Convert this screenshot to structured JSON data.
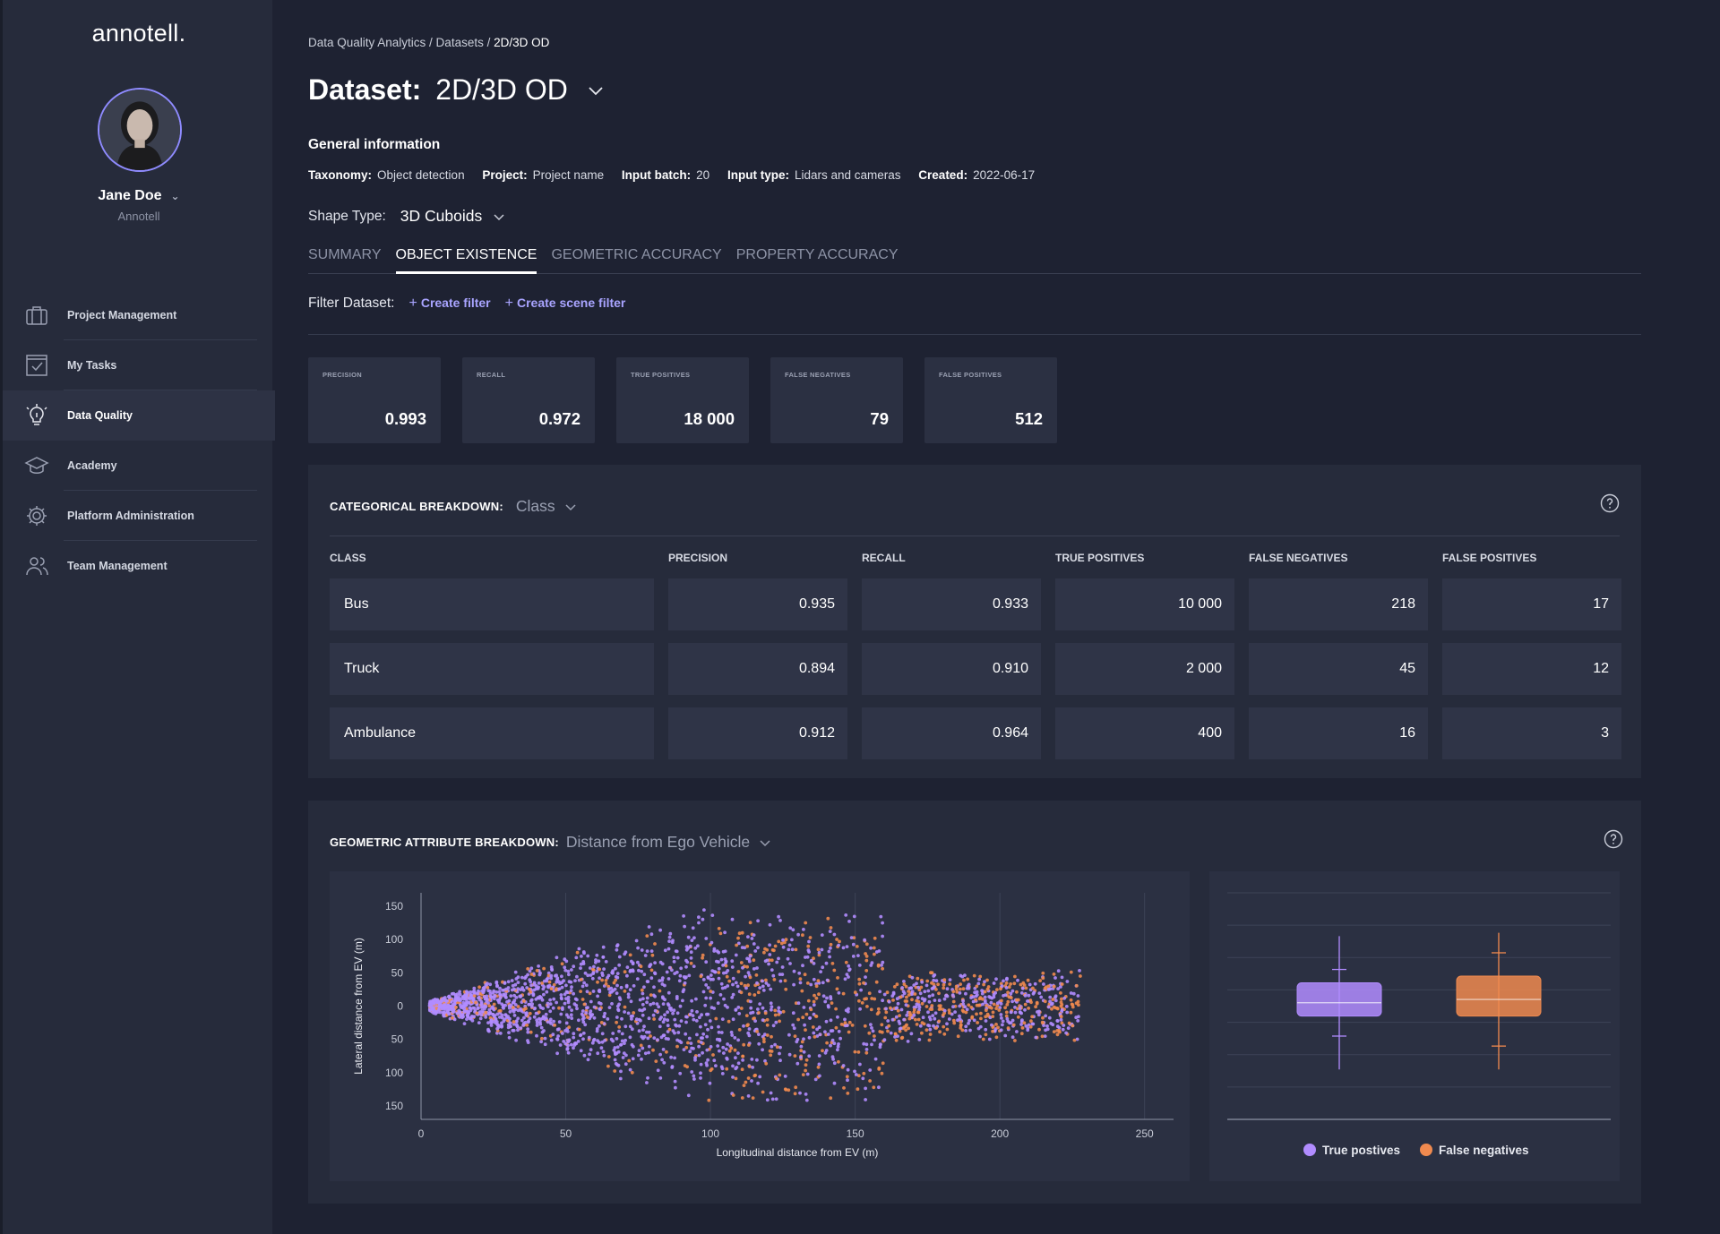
{
  "brand": "annotell.",
  "user": {
    "name": "Jane Doe",
    "org": "Annotell"
  },
  "nav": [
    {
      "label": "Project Management",
      "icon": "briefcase-icon"
    },
    {
      "label": "My Tasks",
      "icon": "checklist-icon"
    },
    {
      "label": "Data Quality",
      "icon": "lightbulb-icon",
      "active": true
    },
    {
      "label": "Academy",
      "icon": "graduation-cap-icon"
    },
    {
      "label": "Platform Administration",
      "icon": "gear-icon"
    },
    {
      "label": "Team Management",
      "icon": "users-icon"
    }
  ],
  "breadcrumb": {
    "path": "Data Quality Analytics / Datasets / ",
    "current": "2D/3D OD"
  },
  "title": {
    "prefix": "Dataset:",
    "name": "2D/3D OD"
  },
  "general": {
    "heading": "General information",
    "taxonomy_k": "Taxonomy:",
    "taxonomy_v": "Object detection",
    "project_k": "Project:",
    "project_v": "Project name",
    "batch_k": "Input batch:",
    "batch_v": "20",
    "type_k": "Input type:",
    "type_v": "Lidars and cameras",
    "created_k": "Created:",
    "created_v": "2022-06-17"
  },
  "shape": {
    "label": "Shape Type:",
    "value": "3D Cuboids"
  },
  "tabs": [
    "SUMMARY",
    "OBJECT EXISTENCE",
    "GEOMETRIC ACCURACY",
    "PROPERTY ACCURACY"
  ],
  "active_tab": 1,
  "filter": {
    "label": "Filter Dataset:",
    "create": "Create filter",
    "scene": "Create scene filter"
  },
  "kpis": [
    {
      "label": "PRECISION",
      "value": "0.993"
    },
    {
      "label": "RECALL",
      "value": "0.972"
    },
    {
      "label": "TRUE POSITIVES",
      "value": "18 000"
    },
    {
      "label": "FALSE NEGATIVES",
      "value": "79"
    },
    {
      "label": "FALSE POSITIVES",
      "value": "512"
    }
  ],
  "categorical": {
    "heading": "CATEGORICAL BREAKDOWN:",
    "selector": "Class",
    "columns": [
      "CLASS",
      "PRECISION",
      "RECALL",
      "TRUE POSITIVES",
      "FALSE NEGATIVES",
      "FALSE POSITIVES"
    ],
    "rows": [
      [
        "Bus",
        "0.935",
        "0.933",
        "10 000",
        "218",
        "17"
      ],
      [
        "Truck",
        "0.894",
        "0.910",
        "2 000",
        "45",
        "12"
      ],
      [
        "Ambulance",
        "0.912",
        "0.964",
        "400",
        "16",
        "3"
      ]
    ]
  },
  "geometric": {
    "heading": "GEOMETRIC ATTRIBUTE BREAKDOWN:",
    "selector": "Distance from Ego Vehicle"
  },
  "chart_data": [
    {
      "type": "scatter",
      "xlabel": "Longitudinal distance from EV (m)",
      "ylabel": "Lateral distance from EV (m)",
      "xlim": [
        0,
        260
      ],
      "ylim": [
        -170,
        170
      ],
      "x_ticks": [
        0,
        50,
        100,
        150,
        200,
        250
      ],
      "y_ticks": [
        150,
        100,
        50,
        0,
        -50,
        -100,
        -150
      ],
      "y_tick_labels": [
        "150",
        "100",
        "50",
        "0",
        "50",
        "100",
        "150"
      ],
      "grid": true,
      "series": [
        {
          "name": "True postives",
          "color": "#b18cff"
        },
        {
          "name": "False negatives",
          "color": "#f08a4f"
        }
      ]
    },
    {
      "type": "box",
      "grid": true,
      "legend": "bottom",
      "series": [
        {
          "name": "True postives",
          "color": "#b18cff",
          "whisker_low": -95,
          "q1": -15,
          "median": 5,
          "q3": 35,
          "whisker_high": 105,
          "cap_low": -45,
          "cap_high": 55
        },
        {
          "name": "False negatives",
          "color": "#f08a4f",
          "whisker_low": -95,
          "q1": -15,
          "median": 10,
          "q3": 45,
          "whisker_high": 110,
          "cap_low": -60,
          "cap_high": 80
        }
      ]
    }
  ]
}
